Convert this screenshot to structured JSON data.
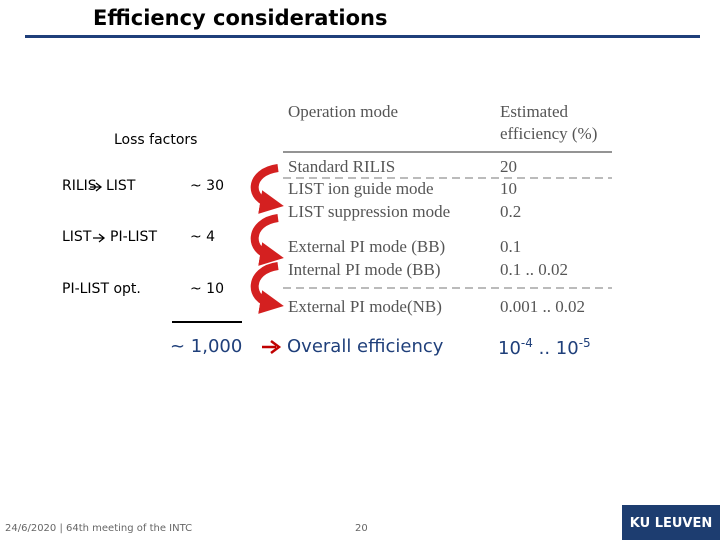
{
  "header": {
    "title": "Efficiency considerations"
  },
  "loss_factors": {
    "title": "Loss factors",
    "rows": [
      {
        "from": "RILIS",
        "to": "LIST",
        "factor": "~ 30"
      },
      {
        "from": "LIST",
        "to": "PI-LIST",
        "factor": "~ 4"
      },
      {
        "from": "PI-LIST opt.",
        "to": null,
        "factor": "~ 10"
      }
    ],
    "total": "~ 1,000",
    "result": "Overall efficiency",
    "range": [
      {
        "base": "10",
        "exp": "-4"
      },
      "..",
      {
        "base": "10",
        "exp": "-5"
      }
    ]
  },
  "table": {
    "header": [
      "Operation mode",
      "Estimated efficiency (%)"
    ],
    "rows": [
      [
        "Standard RILIS",
        "20"
      ],
      [
        "LIST ion guide mode",
        "10"
      ],
      [
        "LIST suppression mode",
        "0.2"
      ],
      [
        "External PI mode (BB)",
        "0.1"
      ],
      [
        "Internal PI mode (BB)",
        "0.1 .. 0.02"
      ],
      [
        "External PI mode(NB)",
        "0.001 .. 0.02"
      ]
    ]
  },
  "footer": {
    "left": "24/6/2020 | 64th meeting of the INTC",
    "page": "20",
    "logo": "KU LEUVEN"
  }
}
